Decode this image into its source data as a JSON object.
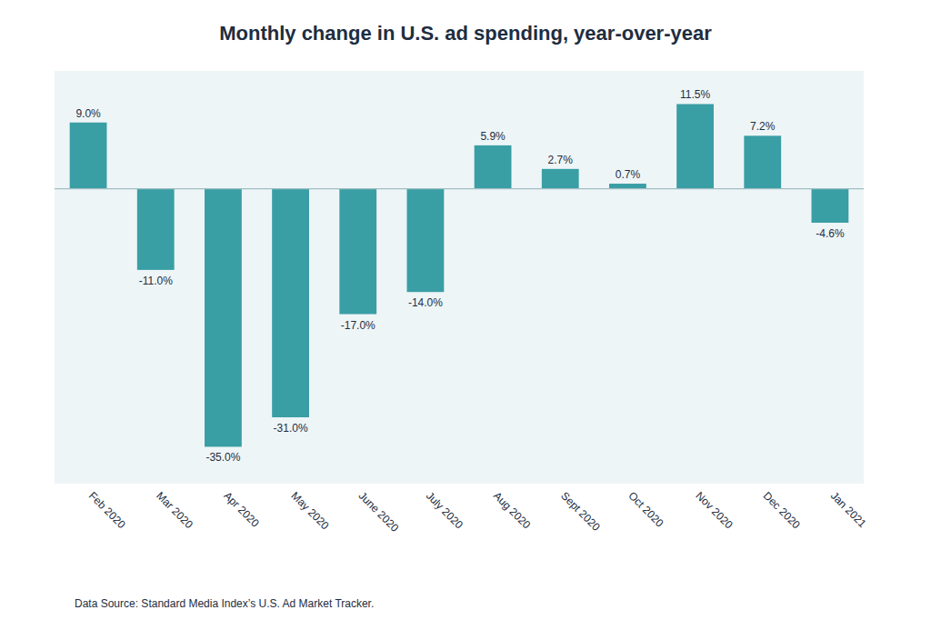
{
  "chart_data": {
    "type": "bar",
    "title": "Monthly change in U.S. ad spending, year-over-year",
    "categories": [
      "Feb 2020",
      "Mar 2020",
      "Apr 2020",
      "May 2020",
      "June 2020",
      "July 2020",
      "Aug 2020",
      "Sept 2020",
      "Oct 2020",
      "Nov 2020",
      "Dec 2020",
      "Jan 2021"
    ],
    "values": [
      9.0,
      -11.0,
      -35.0,
      -31.0,
      -17.0,
      -14.0,
      5.9,
      2.7,
      0.7,
      11.5,
      7.2,
      -4.6
    ],
    "value_labels": [
      "9.0%",
      "-11.0%",
      "-35.0%",
      "-31.0%",
      "-17.0%",
      "-14.0%",
      "5.9%",
      "2.7%",
      "0.7%",
      "11.5%",
      "7.2%",
      "-4.6%"
    ],
    "color": "#3a9ea5",
    "ylim": [
      -40,
      16
    ],
    "grid": false,
    "data_labels": true,
    "tick_labels": "x",
    "footnote": "Data Source: Standard Media Index’s U.S. Ad Market Tracker."
  }
}
